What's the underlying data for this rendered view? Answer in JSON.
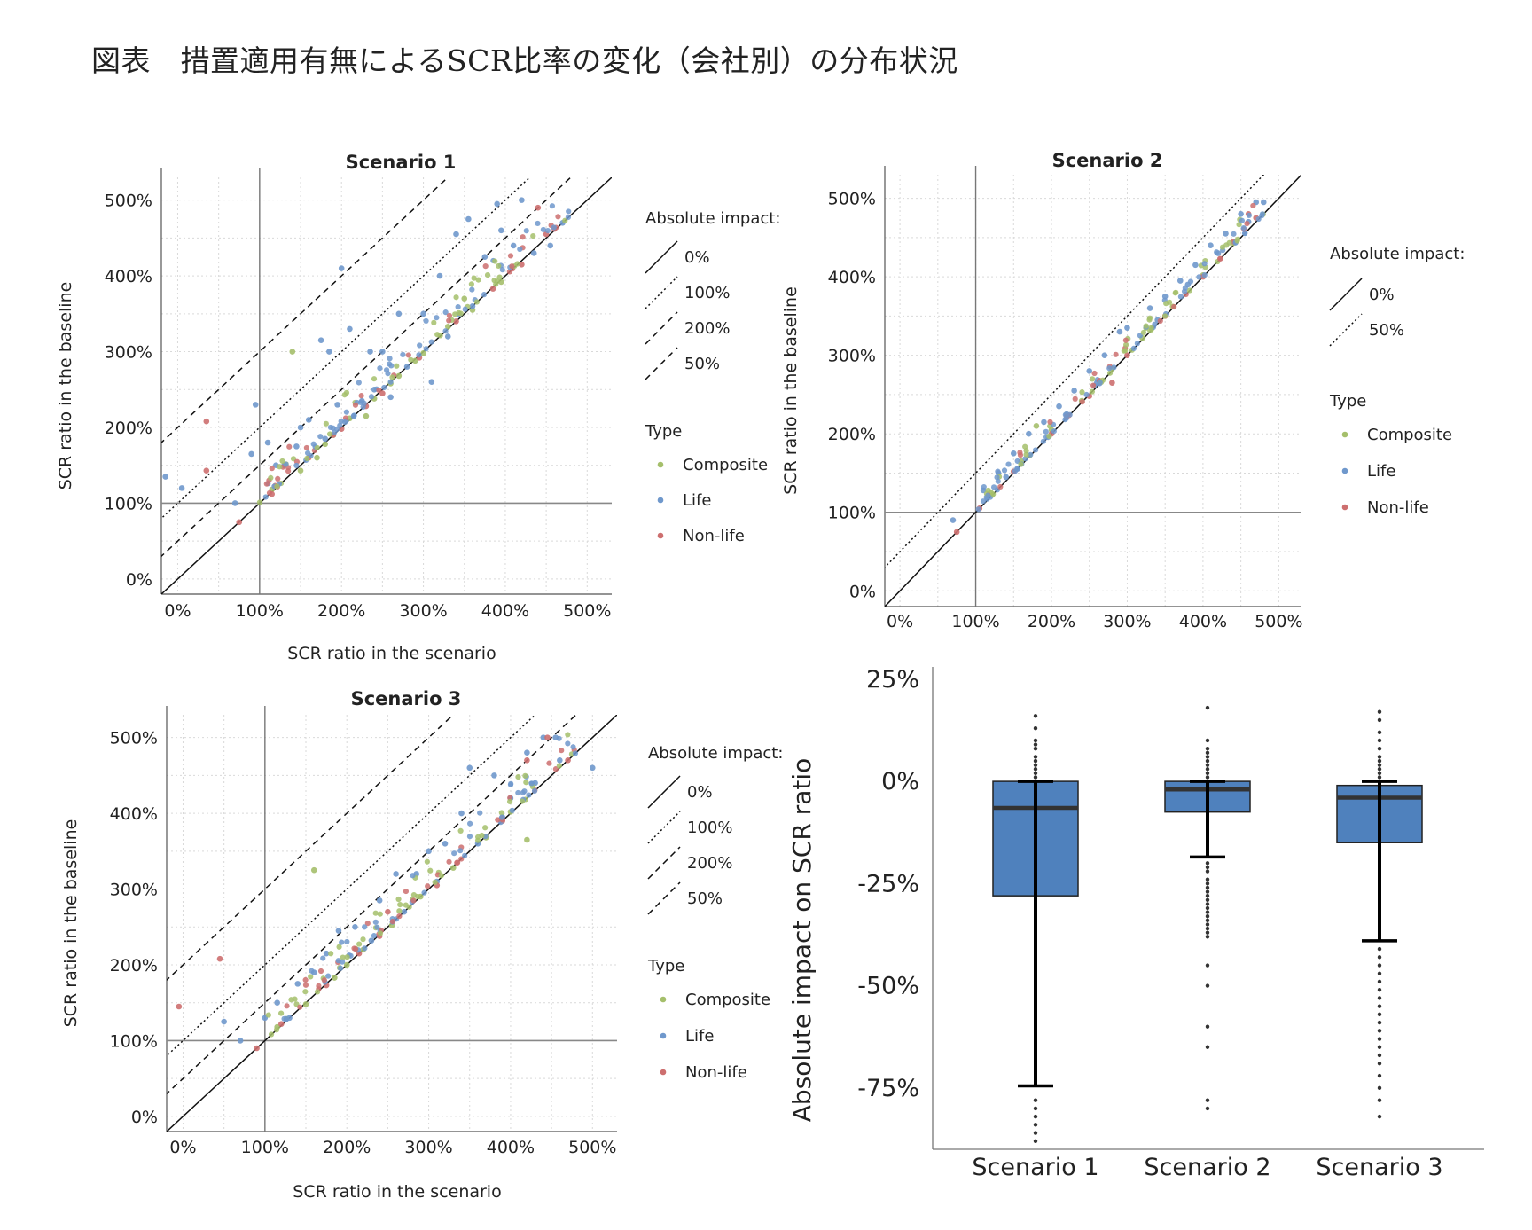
{
  "title": "図表　措置適用有無によるSCR比率の変化（会社別）の分布状況",
  "colors": {
    "composite": "#a5bf6b",
    "life": "#6f98cc",
    "nonlife": "#cd6f6f",
    "box_fill": "#4f81bd"
  },
  "legend": {
    "impact_title": "Absolute impact:",
    "type_title": "Type",
    "impact_items_s13": [
      "0%",
      "100%",
      "200%",
      "50%"
    ],
    "impact_items_s2": [
      "0%",
      "50%"
    ],
    "type_items": [
      "Composite",
      "Life",
      "Non-life"
    ]
  },
  "chart_data": [
    {
      "type": "scatter",
      "title": "Scenario 1",
      "xlabel": "SCR ratio in the scenario",
      "ylabel": "SCR ratio in the baseline",
      "xticks": [
        "0%",
        "100%",
        "200%",
        "300%",
        "400%",
        "500%"
      ],
      "yticks": [
        "0%",
        "100%",
        "200%",
        "300%",
        "400%",
        "500%"
      ],
      "xlim": [
        -20,
        530
      ],
      "ylim": [
        -20,
        530
      ],
      "reference_lines": [
        {
          "label": "0%",
          "offset": 0,
          "style": "solid"
        },
        {
          "label": "50%",
          "offset": 50,
          "style": "dashed"
        },
        {
          "label": "100%",
          "offset": 100,
          "style": "dotted"
        },
        {
          "label": "200%",
          "offset": 200,
          "style": "dashed"
        }
      ],
      "seed": 11,
      "series": [
        {
          "name": "Composite",
          "points": [
            [
              115,
              118
            ],
            [
              150,
              143
            ],
            [
              180,
              178
            ],
            [
              210,
              212
            ],
            [
              240,
              238
            ],
            [
              270,
              268
            ],
            [
              300,
              298
            ],
            [
              330,
              333
            ],
            [
              360,
              355
            ],
            [
              395,
              392
            ],
            [
              140,
              300
            ],
            [
              230,
              215
            ],
            [
              260,
              258
            ],
            [
              290,
              288
            ],
            [
              350,
              370
            ],
            [
              190,
              190
            ],
            [
              170,
              160
            ]
          ]
        },
        {
          "name": "Life",
          "points": [
            [
              -15,
              135
            ],
            [
              5,
              120
            ],
            [
              70,
              100
            ],
            [
              90,
              165
            ],
            [
              95,
              230
            ],
            [
              110,
              180
            ],
            [
              120,
              150
            ],
            [
              130,
              150
            ],
            [
              145,
              175
            ],
            [
              160,
              210
            ],
            [
              175,
              315
            ],
            [
              185,
              300
            ],
            [
              195,
              230
            ],
            [
              200,
              410
            ],
            [
              210,
              330
            ],
            [
              225,
              235
            ],
            [
              235,
              300
            ],
            [
              250,
              300
            ],
            [
              270,
              350
            ],
            [
              300,
              350
            ],
            [
              320,
              400
            ],
            [
              340,
              455
            ],
            [
              355,
              475
            ],
            [
              375,
              425
            ],
            [
              390,
              495
            ],
            [
              395,
              460
            ],
            [
              410,
              440
            ],
            [
              420,
              500
            ],
            [
              435,
              430
            ],
            [
              455,
              440
            ],
            [
              470,
              470
            ],
            [
              310,
              260
            ],
            [
              280,
              280
            ],
            [
              240,
              250
            ],
            [
              215,
              215
            ],
            [
              150,
              200
            ],
            [
              180,
              185
            ],
            [
              260,
              240
            ],
            [
              330,
              320
            ],
            [
              360,
              360
            ]
          ]
        },
        {
          "name": "Non-life",
          "points": [
            [
              35,
              208
            ],
            [
              35,
              143
            ],
            [
              75,
              75
            ],
            [
              115,
              112
            ],
            [
              160,
              160
            ],
            [
              200,
              198
            ],
            [
              250,
              245
            ],
            [
              295,
              292
            ],
            [
              340,
              340
            ],
            [
              385,
              383
            ],
            [
              420,
              415
            ],
            [
              450,
              455
            ],
            [
              460,
              462
            ],
            [
              440,
              490
            ],
            [
              190,
              190
            ],
            [
              230,
              228
            ]
          ]
        }
      ]
    },
    {
      "type": "scatter",
      "title": "Scenario 2",
      "xlabel": "",
      "ylabel": "SCR ratio in the baseline",
      "xticks": [
        "0%",
        "100%",
        "200%",
        "300%",
        "400%",
        "500%"
      ],
      "yticks": [
        "0%",
        "100%",
        "200%",
        "300%",
        "400%",
        "500%"
      ],
      "xlim": [
        -20,
        530
      ],
      "ylim": [
        -20,
        530
      ],
      "reference_lines": [
        {
          "label": "0%",
          "offset": 0,
          "style": "solid"
        },
        {
          "label": "50%",
          "offset": 50,
          "style": "dotted"
        }
      ],
      "seed": 23,
      "series": [
        {
          "name": "Composite",
          "points": [
            [
              120,
              125
            ],
            [
              160,
              165
            ],
            [
              200,
              205
            ],
            [
              240,
              242
            ],
            [
              280,
              283
            ],
            [
              320,
              322
            ],
            [
              360,
              362
            ],
            [
              400,
              402
            ],
            [
              440,
              443
            ],
            [
              180,
              210
            ]
          ]
        },
        {
          "name": "Life",
          "points": [
            [
              70,
              90
            ],
            [
              110,
              128
            ],
            [
              130,
              150
            ],
            [
              150,
              175
            ],
            [
              170,
              200
            ],
            [
              190,
              215
            ],
            [
              210,
              235
            ],
            [
              230,
              255
            ],
            [
              250,
              280
            ],
            [
              270,
              300
            ],
            [
              290,
              330
            ],
            [
              300,
              335
            ],
            [
              330,
              360
            ],
            [
              350,
              375
            ],
            [
              370,
              395
            ],
            [
              390,
              415
            ],
            [
              410,
              440
            ],
            [
              430,
              455
            ],
            [
              450,
              480
            ],
            [
              470,
              495
            ],
            [
              480,
              495
            ],
            [
              460,
              470
            ],
            [
              420,
              430
            ],
            [
              380,
              390
            ],
            [
              340,
              345
            ],
            [
              260,
              265
            ],
            [
              220,
              225
            ],
            [
              140,
              145
            ]
          ]
        },
        {
          "name": "Non-life",
          "points": [
            [
              75,
              75
            ],
            [
              105,
              105
            ],
            [
              150,
              152
            ],
            [
              200,
              200
            ],
            [
              250,
              248
            ],
            [
              280,
              265
            ],
            [
              300,
              300
            ],
            [
              350,
              350
            ],
            [
              400,
              400
            ],
            [
              440,
              445
            ],
            [
              460,
              480
            ],
            [
              470,
              475
            ]
          ]
        }
      ]
    },
    {
      "type": "scatter",
      "title": "Scenario 3",
      "xlabel": "SCR ratio in the scenario",
      "ylabel": "SCR ratio in the baseline",
      "xticks": [
        "0%",
        "100%",
        "200%",
        "300%",
        "400%",
        "500%"
      ],
      "yticks": [
        "0%",
        "100%",
        "200%",
        "300%",
        "400%",
        "500%"
      ],
      "xlim": [
        -20,
        530
      ],
      "ylim": [
        -20,
        530
      ],
      "reference_lines": [
        {
          "label": "0%",
          "offset": 0,
          "style": "solid"
        },
        {
          "label": "50%",
          "offset": 50,
          "style": "dashed"
        },
        {
          "label": "100%",
          "offset": 100,
          "style": "dotted"
        },
        {
          "label": "200%",
          "offset": 200,
          "style": "dashed"
        }
      ],
      "seed": 37,
      "series": [
        {
          "name": "Composite",
          "points": [
            [
              160,
              325
            ],
            [
              115,
              118
            ],
            [
              150,
              148
            ],
            [
              185,
              183
            ],
            [
              220,
              220
            ],
            [
              255,
              252
            ],
            [
              290,
              290
            ],
            [
              330,
              328
            ],
            [
              370,
              368
            ],
            [
              400,
              402
            ],
            [
              420,
              365
            ],
            [
              200,
              200
            ]
          ]
        },
        {
          "name": "Life",
          "points": [
            [
              50,
              125
            ],
            [
              70,
              100
            ],
            [
              100,
              130
            ],
            [
              115,
              150
            ],
            [
              140,
              175
            ],
            [
              160,
              190
            ],
            [
              175,
              215
            ],
            [
              190,
              245
            ],
            [
              210,
              250
            ],
            [
              240,
              285
            ],
            [
              260,
              320
            ],
            [
              285,
              320
            ],
            [
              300,
              350
            ],
            [
              320,
              360
            ],
            [
              340,
              400
            ],
            [
              350,
              460
            ],
            [
              380,
              450
            ],
            [
              400,
              420
            ],
            [
              420,
              480
            ],
            [
              440,
              500
            ],
            [
              455,
              500
            ],
            [
              500,
              460
            ],
            [
              460,
              470
            ],
            [
              430,
              440
            ],
            [
              390,
              395
            ],
            [
              360,
              360
            ],
            [
              310,
              310
            ],
            [
              270,
              270
            ],
            [
              230,
              232
            ],
            [
              130,
              130
            ]
          ]
        },
        {
          "name": "Non-life",
          "points": [
            [
              -5,
              145
            ],
            [
              45,
              208
            ],
            [
              90,
              90
            ],
            [
              120,
              122
            ],
            [
              175,
              173
            ],
            [
              240,
              238
            ],
            [
              250,
              270
            ],
            [
              310,
              305
            ],
            [
              335,
              335
            ],
            [
              390,
              390
            ],
            [
              420,
              470
            ],
            [
              445,
              500
            ],
            [
              470,
              470
            ],
            [
              215,
              215
            ]
          ]
        }
      ]
    },
    {
      "type": "box",
      "title": "",
      "ylabel": "Absolute impact on SCR ratio",
      "yticks": [
        "25%",
        "0%",
        "-25%",
        "-50%",
        "-75%"
      ],
      "ylim": [
        -90,
        28
      ],
      "categories": [
        "Scenario 1",
        "Scenario 2",
        "Scenario 3"
      ],
      "boxes": [
        {
          "q1": -28,
          "median": -6.5,
          "q3": 0,
          "whisker_low": -74.5,
          "whisker_high": 0,
          "outliers": [
            -78,
            -80,
            -82,
            -84,
            -86,
            -88,
            1,
            2,
            3,
            4,
            5,
            6,
            8,
            9,
            10,
            13,
            16
          ]
        },
        {
          "q1": -7.5,
          "median": -2,
          "q3": 0,
          "whisker_low": -18.5,
          "whisker_high": 0,
          "outliers": [
            -20,
            -21,
            -22,
            -24,
            -25,
            -26,
            -27,
            -28,
            -29,
            -30,
            -31,
            -32,
            -33,
            -34,
            -35,
            -36,
            -37,
            -38,
            -45,
            -50,
            -60,
            -65,
            -78,
            -80,
            1,
            2,
            3,
            4,
            5,
            6,
            7,
            8,
            10,
            18
          ]
        },
        {
          "q1": -15,
          "median": -4,
          "q3": -1,
          "whisker_low": -39,
          "whisker_high": 0,
          "outliers": [
            -41,
            -43,
            -45,
            -47,
            -49,
            -51,
            -53,
            -55,
            -57,
            -59,
            -61,
            -63,
            -65,
            -67,
            -69,
            -72,
            -75,
            -78,
            -82,
            1,
            2,
            3,
            4,
            5,
            6,
            8,
            10,
            12,
            15,
            17
          ]
        }
      ]
    }
  ]
}
